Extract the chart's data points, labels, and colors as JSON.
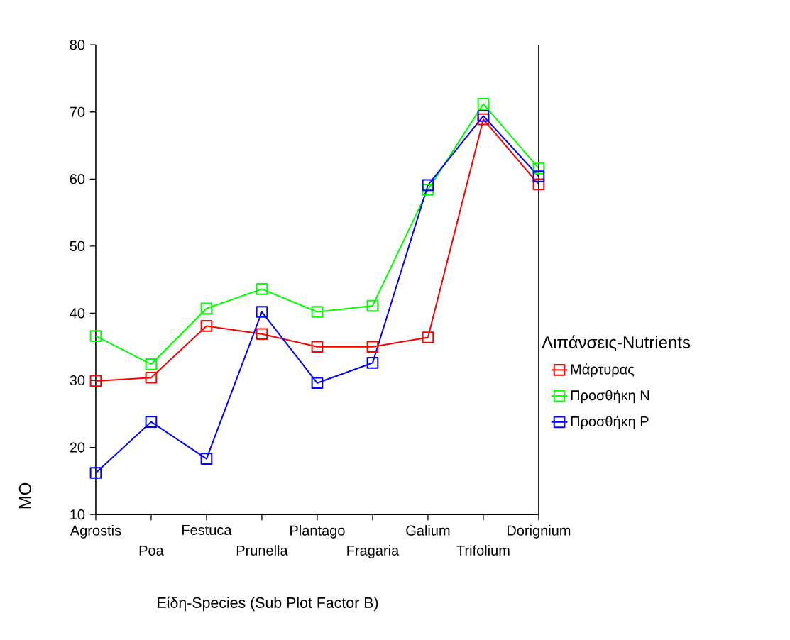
{
  "chart_data": {
    "type": "line",
    "xlabel": "Είδη-Species (Sub Plot Factor B)",
    "ylabel": "MO",
    "legend_title": "Λιπάνσεις-Nutrients",
    "categories": [
      "Agrostis",
      "Poa",
      "Festuca",
      "Prunella",
      "Plantago",
      "Fragaria",
      "Galium",
      "Trifolium",
      "Dorignium"
    ],
    "series": [
      {
        "name": "Μάρτυρας",
        "color": "#ff0000",
        "values": [
          29.9,
          30.4,
          38.1,
          36.9,
          35.0,
          35.0,
          36.4,
          68.9,
          59.2
        ]
      },
      {
        "name": "Προσθήκη N",
        "color": "#00ff00",
        "values": [
          36.6,
          32.4,
          40.7,
          43.6,
          40.2,
          41.1,
          58.4,
          71.2,
          61.6
        ]
      },
      {
        "name": "Προσθήκη P",
        "color": "#0000ff",
        "values": [
          16.2,
          23.8,
          18.3,
          40.2,
          29.6,
          32.6,
          59.1,
          69.4,
          60.4
        ]
      }
    ],
    "ylim": [
      10,
      80
    ],
    "yticks": [
      10,
      20,
      30,
      40,
      50,
      60,
      70,
      80
    ],
    "marker": "square",
    "legend": "right"
  }
}
